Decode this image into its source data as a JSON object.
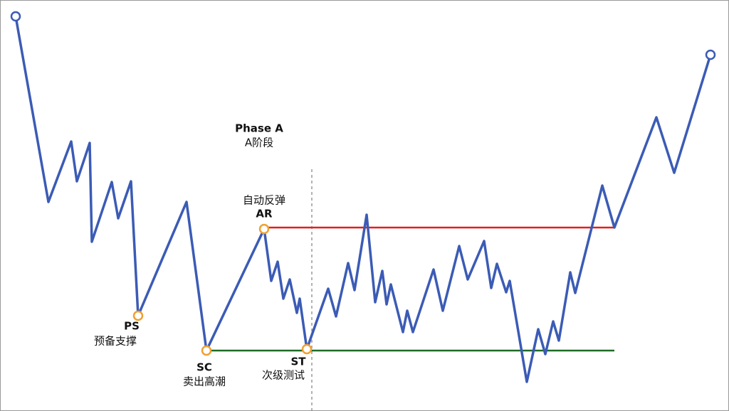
{
  "phase": {
    "title": "Phase A",
    "subtitle": "A阶段"
  },
  "points": [
    {
      "code": "PS",
      "label": "预备支撑"
    },
    {
      "code": "SC",
      "label": "卖出高潮"
    },
    {
      "label": "自动反弹",
      "code": "AR"
    },
    {
      "code": "ST",
      "label": "次级测试"
    }
  ]
}
